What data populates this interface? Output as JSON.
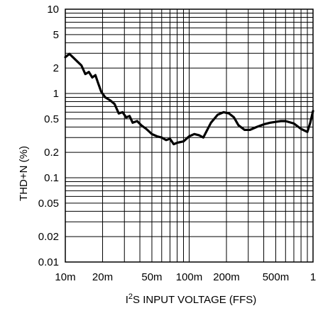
{
  "chart_data": {
    "type": "line",
    "title": "",
    "xlabel_parts": [
      "I",
      "2",
      "S INPUT VOLTAGE (FFS)"
    ],
    "ylabel": "THD+N (%)",
    "xscale": "log",
    "yscale": "log",
    "xlim": [
      0.01,
      1
    ],
    "ylim": [
      0.01,
      10
    ],
    "grid": true,
    "x_ticks": [
      {
        "value": 0.01,
        "label": "10m"
      },
      {
        "value": 0.02,
        "label": "20m"
      },
      {
        "value": 0.05,
        "label": "50m"
      },
      {
        "value": 0.1,
        "label": "100m"
      },
      {
        "value": 0.2,
        "label": "200m"
      },
      {
        "value": 0.5,
        "label": "500m"
      },
      {
        "value": 1,
        "label": "1"
      }
    ],
    "y_ticks": [
      {
        "value": 0.01,
        "label": "0.01"
      },
      {
        "value": 0.02,
        "label": "0.02"
      },
      {
        "value": 0.05,
        "label": "0.05"
      },
      {
        "value": 0.1,
        "label": "0.1"
      },
      {
        "value": 0.2,
        "label": "0.2"
      },
      {
        "value": 0.5,
        "label": "0.5"
      },
      {
        "value": 1,
        "label": "1"
      },
      {
        "value": 2,
        "label": "2"
      },
      {
        "value": 5,
        "label": "5"
      },
      {
        "value": 10,
        "label": "10"
      }
    ],
    "series": [
      {
        "color": "#000000",
        "x": [
          0.01,
          0.0108,
          0.0115,
          0.0125,
          0.0135,
          0.0145,
          0.0155,
          0.0165,
          0.0175,
          0.0185,
          0.0195,
          0.021,
          0.023,
          0.025,
          0.027,
          0.029,
          0.031,
          0.033,
          0.035,
          0.038,
          0.041,
          0.045,
          0.05,
          0.055,
          0.06,
          0.065,
          0.07,
          0.075,
          0.08,
          0.09,
          0.1,
          0.11,
          0.12,
          0.13,
          0.14,
          0.15,
          0.17,
          0.19,
          0.21,
          0.23,
          0.25,
          0.28,
          0.31,
          0.35,
          0.4,
          0.45,
          0.5,
          0.55,
          0.6,
          0.7,
          0.8,
          0.9,
          0.95,
          1.0
        ],
        "y": [
          2.7,
          2.95,
          2.7,
          2.4,
          2.15,
          1.7,
          1.8,
          1.55,
          1.65,
          1.3,
          1.05,
          0.9,
          0.83,
          0.75,
          0.58,
          0.6,
          0.52,
          0.54,
          0.45,
          0.47,
          0.42,
          0.38,
          0.33,
          0.31,
          0.3,
          0.28,
          0.29,
          0.25,
          0.26,
          0.27,
          0.31,
          0.33,
          0.32,
          0.3,
          0.37,
          0.45,
          0.56,
          0.6,
          0.58,
          0.52,
          0.42,
          0.37,
          0.37,
          0.4,
          0.43,
          0.45,
          0.46,
          0.47,
          0.47,
          0.44,
          0.38,
          0.35,
          0.45,
          0.62
        ]
      }
    ]
  }
}
